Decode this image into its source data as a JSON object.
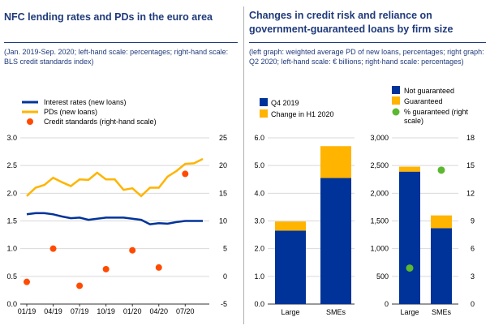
{
  "left_panel": {
    "title": "NFC lending rates and PDs in the euro area",
    "subtitle": "(Jan. 2019-Sep. 2020; left-hand scale: percentages; right-hand scale: BLS credit standards index)"
  },
  "right_panel": {
    "title_line1": "Changes in credit risk and reliance on",
    "title_line2": "government-guaranteed loans by firm size",
    "subtitle": "(left graph: weighted average PD of new loans, percentages; right graph: Q2 2020; left-hand scale: € billions; right-hand scale: percentages)"
  },
  "chart_data": [
    {
      "type": "line",
      "title": "NFC lending rates and PDs in the euro area",
      "x_tick_labels": [
        "01/19",
        "04/19",
        "07/19",
        "10/19",
        "01/20",
        "04/20",
        "07/20"
      ],
      "x_months": [
        "2019-01",
        "2019-02",
        "2019-03",
        "2019-04",
        "2019-05",
        "2019-06",
        "2019-07",
        "2019-08",
        "2019-09",
        "2019-10",
        "2019-11",
        "2019-12",
        "2020-01",
        "2020-02",
        "2020-03",
        "2020-04",
        "2020-05",
        "2020-06",
        "2020-07",
        "2020-08",
        "2020-09"
      ],
      "ylim_left": [
        0,
        3.0
      ],
      "yticks_left": [
        "0.0",
        "0.5",
        "1.0",
        "1.5",
        "2.0",
        "2.5",
        "3.0"
      ],
      "ylim_right": [
        -5,
        25
      ],
      "yticks_right": [
        "-5",
        "0",
        "5",
        "10",
        "15",
        "20",
        "25"
      ],
      "legend": [
        "Interest rates (new loans)",
        "PDs (new loans)",
        "Credit standards  (right-hand scale)"
      ],
      "series": [
        {
          "name": "Interest rates (new loans)",
          "axis": "left",
          "color": "#003399",
          "values": [
            1.62,
            1.64,
            1.64,
            1.62,
            1.58,
            1.55,
            1.56,
            1.52,
            1.54,
            1.56,
            1.56,
            1.56,
            1.54,
            1.52,
            1.44,
            1.46,
            1.45,
            1.48,
            1.5,
            1.5,
            1.5
          ]
        },
        {
          "name": "PDs (new loans)",
          "axis": "left",
          "color": "#ffb400",
          "values": [
            1.95,
            2.1,
            2.15,
            2.28,
            2.2,
            2.13,
            2.25,
            2.24,
            2.37,
            2.25,
            2.25,
            2.06,
            2.09,
            1.95,
            2.1,
            2.1,
            2.3,
            2.4,
            2.53,
            2.54,
            2.62
          ]
        },
        {
          "name": "Credit standards  (right-hand scale)",
          "axis": "right",
          "color": "#ff4b00",
          "marker": "dot",
          "x": [
            "2019-01",
            "2019-04",
            "2019-07",
            "2019-10",
            "2020-01",
            "2020-04",
            "2020-07"
          ],
          "values": [
            -1.0,
            5.0,
            -1.7,
            1.3,
            4.7,
            1.6,
            18.5
          ]
        }
      ]
    },
    {
      "type": "bar",
      "stacked": true,
      "categories": [
        "Large",
        "SMEs"
      ],
      "ylim": [
        0,
        6.0
      ],
      "yticks": [
        "0.0",
        "1.0",
        "2.0",
        "3.0",
        "4.0",
        "5.0",
        "6.0"
      ],
      "legend": [
        "Q4 2019",
        "Change in H1 2020"
      ],
      "series": [
        {
          "name": "Q4 2019",
          "color": "#003399",
          "values": [
            2.65,
            4.55
          ]
        },
        {
          "name": "Change in H1 2020",
          "color": "#ffb400",
          "values": [
            0.33,
            1.15
          ]
        }
      ]
    },
    {
      "type": "bar",
      "stacked": true,
      "categories": [
        "Large",
        "SMEs"
      ],
      "ylim": [
        0,
        3000
      ],
      "yticks": [
        "0",
        "500",
        "1,000",
        "1,500",
        "2,000",
        "2,500",
        "3,000"
      ],
      "ylim_right": [
        0,
        18
      ],
      "yticks_right": [
        "0",
        "3",
        "6",
        "9",
        "12",
        "15",
        "18"
      ],
      "legend": [
        "Not guaranteed",
        "Guaranteed",
        "% guaranteed (right scale)"
      ],
      "series": [
        {
          "name": "Not guaranteed",
          "color": "#003399",
          "values": [
            2390,
            1370
          ]
        },
        {
          "name": "Guaranteed",
          "color": "#ffb400",
          "values": [
            90,
            230
          ]
        },
        {
          "name": "% guaranteed (right scale)",
          "color": "#5cb82e",
          "marker": "dot",
          "axis": "right",
          "values": [
            3.9,
            14.5
          ]
        }
      ]
    }
  ]
}
